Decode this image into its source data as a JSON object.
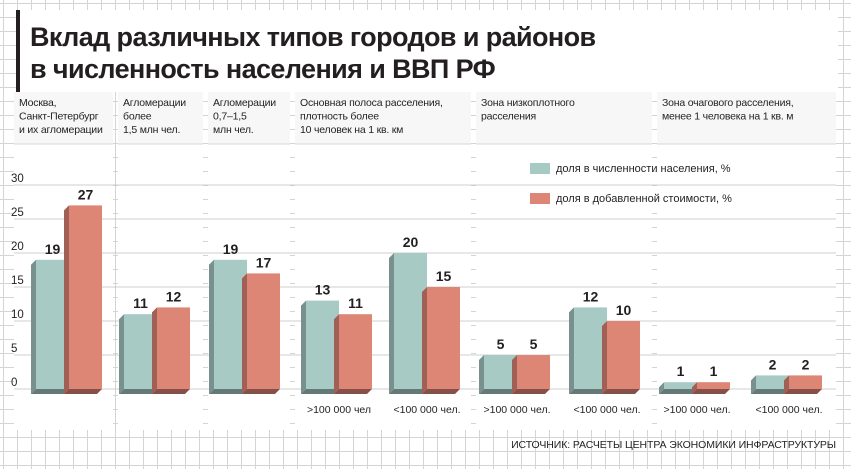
{
  "chart_data": {
    "type": "bar",
    "title_lines": [
      "Вклад различных типов городов и районов",
      "в численность населения и ВВП РФ"
    ],
    "ylim": [
      0,
      30
    ],
    "yticks": [
      "0",
      "5",
      "10",
      "15",
      "20",
      "25",
      "30"
    ],
    "series": [
      {
        "name": "доля в численности населения, %",
        "color": "#a8cac5",
        "values": [
          19,
          11,
          19,
          13,
          20,
          5,
          12,
          1,
          2
        ]
      },
      {
        "name": "доля в добавленной стоимости, %",
        "color": "#de8676",
        "values": [
          27,
          12,
          17,
          11,
          15,
          5,
          10,
          1,
          2
        ]
      }
    ],
    "sub_labels": [
      "",
      "",
      "",
      ">100 000 чел",
      "<100 000 чел.",
      ">100 000 чел.",
      "<100 000 чел.",
      ">100 000 чел.",
      "<100 000 чел."
    ],
    "groups": [
      {
        "header": [
          "Москва,",
          "Санкт-Петербург",
          "и их агломерации"
        ]
      },
      {
        "header": [
          "Агломерации",
          "более",
          "1,5 млн чел."
        ]
      },
      {
        "header": [
          "Агломерации",
          "0,7–1,5",
          "млн чел."
        ]
      },
      {
        "header": [
          "Основная полоса расселения,",
          "плотность более",
          "10 человек на 1 кв. км"
        ]
      },
      {
        "header": [
          "Зона низкоплотного",
          "расселения"
        ]
      },
      {
        "header": [
          "Зона очагового расселения,",
          "менее 1 человека на 1 кв. м"
        ]
      }
    ],
    "source": "ИСТОЧНИК: РАСЧЕТЫ ЦЕНТРА ЭКОНОМИКИ ИНФРАСТРУКТУРЫ",
    "legend_position": "upper-right inside plot"
  }
}
